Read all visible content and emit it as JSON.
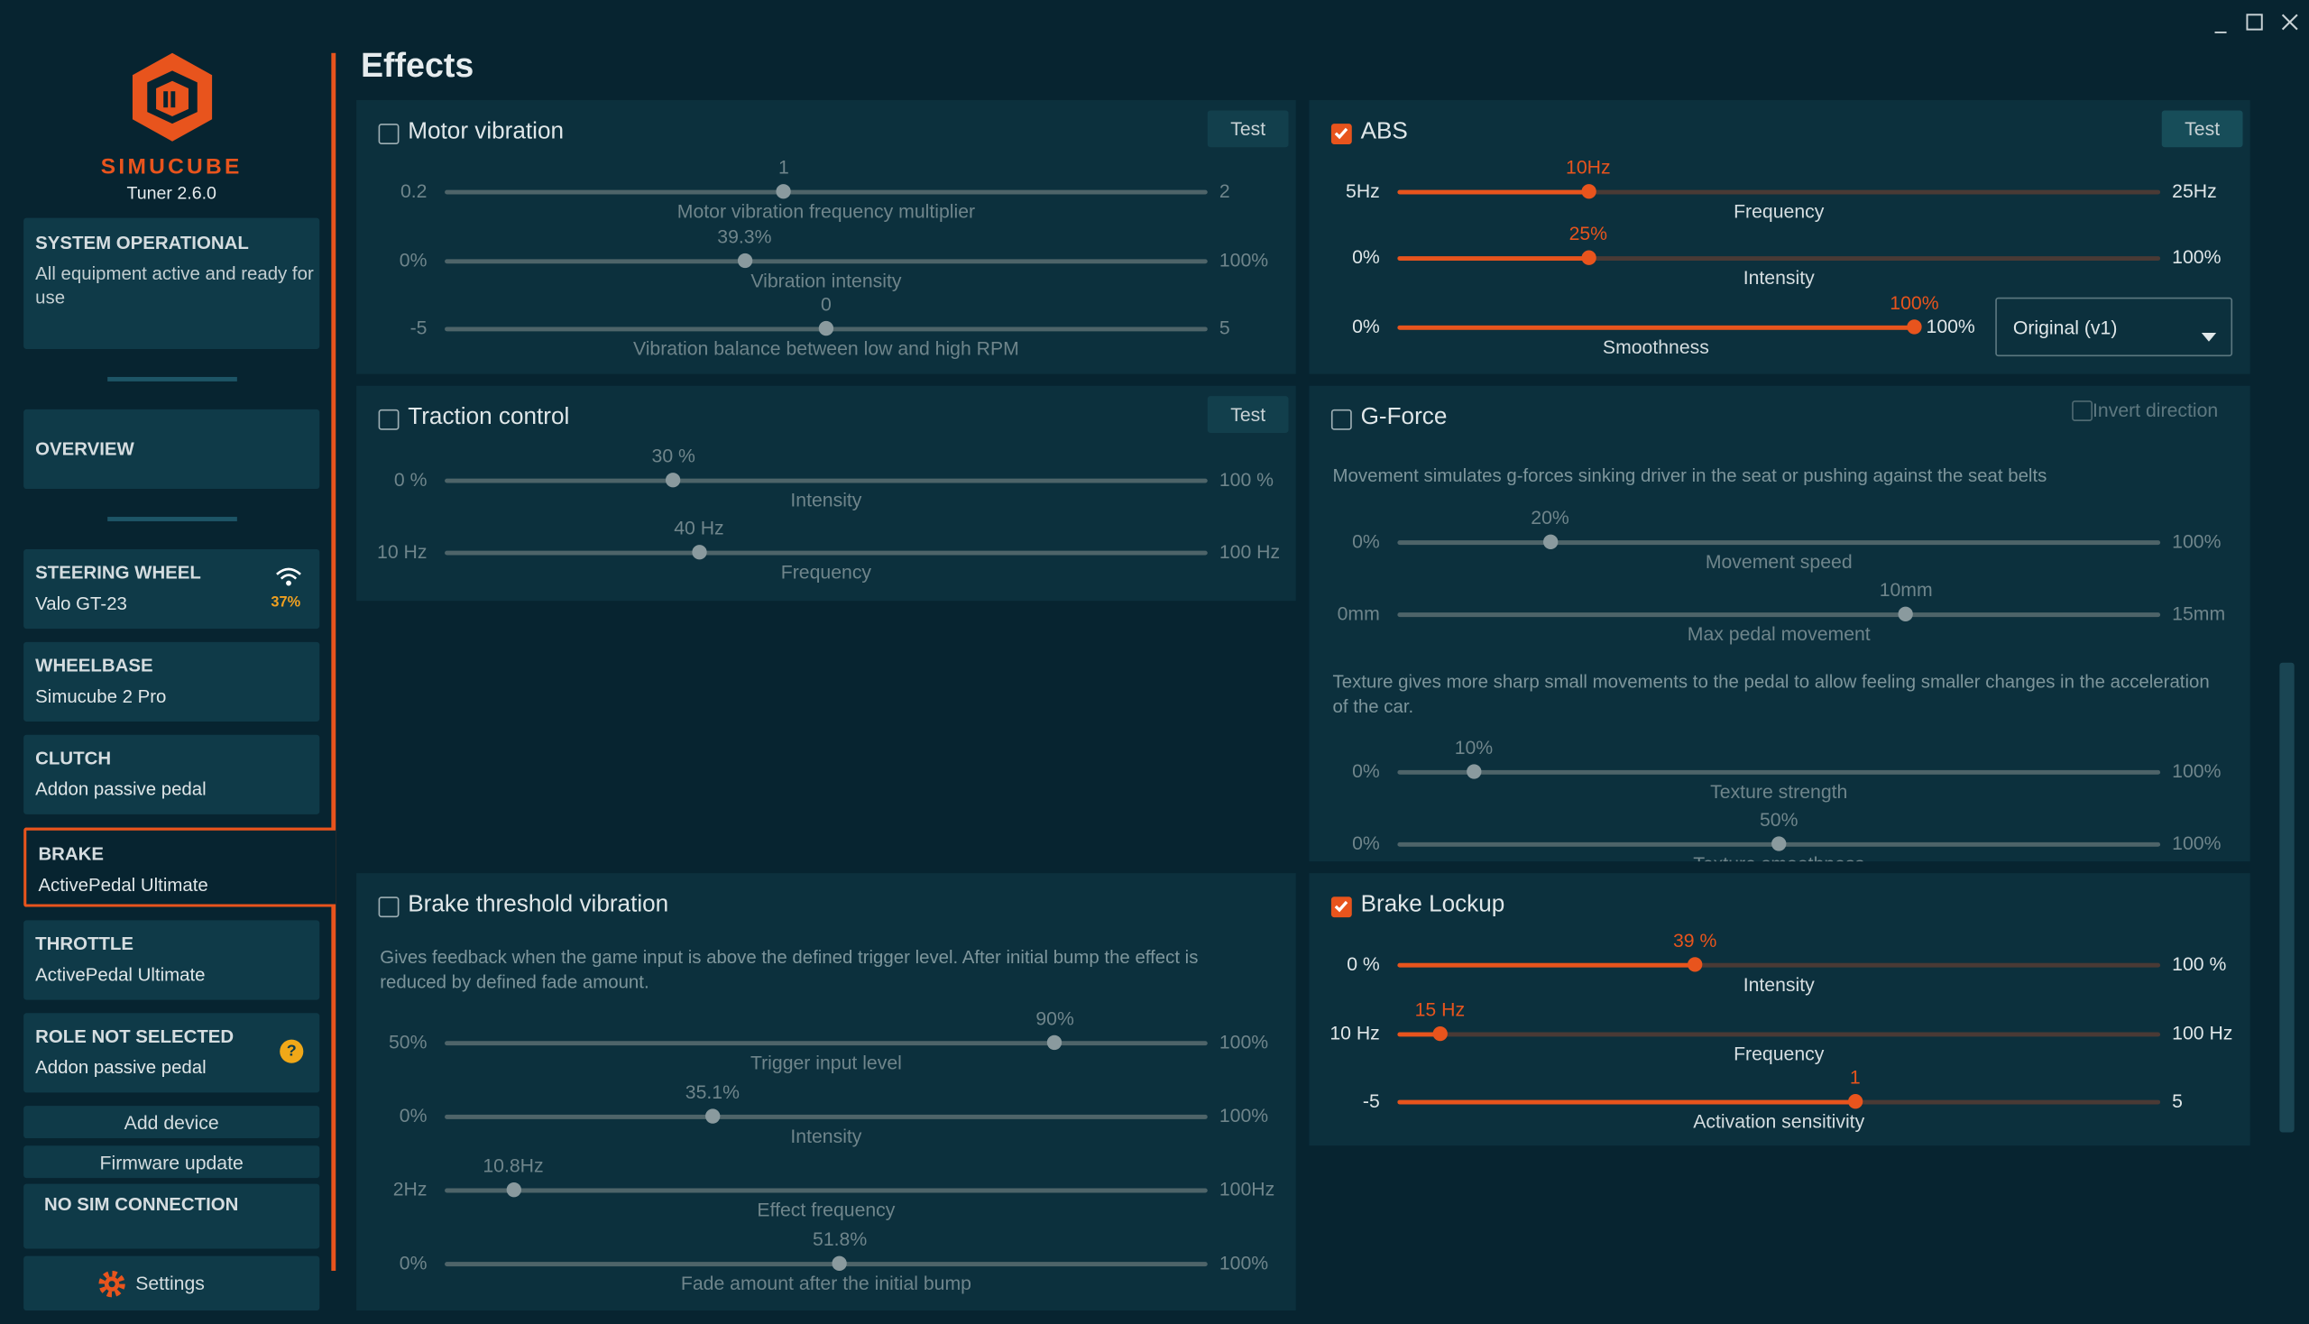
{
  "sidebar": {
    "brand": "SIMUCUBE",
    "version": "Tuner 2.6.0",
    "status": {
      "title": "SYSTEM OPERATIONAL",
      "text": "All equipment active and ready for use"
    },
    "overview": "OVERVIEW",
    "devices": [
      {
        "role": "STEERING WHEEL",
        "name": "Valo GT-23",
        "battery": "37%"
      },
      {
        "role": "WHEELBASE",
        "name": "Simucube 2 Pro"
      },
      {
        "role": "CLUTCH",
        "name": "Addon passive pedal"
      },
      {
        "role": "BRAKE",
        "name": "ActivePedal Ultimate",
        "selected": true
      },
      {
        "role": "THROTTLE",
        "name": "ActivePedal Ultimate"
      },
      {
        "role": "ROLE NOT SELECTED",
        "name": "Addon passive pedal",
        "badge": "?"
      }
    ],
    "actions": [
      "Add device",
      "Firmware update"
    ],
    "sim_status": "NO SIM CONNECTION",
    "settings": "Settings"
  },
  "page_title": "Effects",
  "panels": [
    {
      "title": "Motor vibration",
      "enabled": false,
      "test": "Test",
      "items": [
        {
          "name": "Motor vibration frequency multiplier",
          "min": 0.2,
          "max": 2,
          "value": 1
        },
        {
          "name": "Vibration intensity",
          "min": {
            "value": 0,
            "label": "0%"
          },
          "max": {
            "value": 100,
            "label": "100%"
          },
          "value": {
            "value": 39.3,
            "label": "39.3%"
          }
        },
        {
          "name": "Vibration balance between low and high RPM",
          "min": -5,
          "max": 5,
          "value": 0
        }
      ]
    },
    {
      "title": "ABS",
      "enabled": true,
      "test": "Test",
      "dropdown": "Original (v1)",
      "items": [
        {
          "name": "Frequency",
          "min": {
            "value": 5,
            "label": "5Hz"
          },
          "max": {
            "value": 25,
            "label": "25Hz"
          },
          "value": {
            "value": 10,
            "label": "10Hz"
          }
        },
        {
          "name": "Intensity",
          "min": {
            "value": 0,
            "label": "0%"
          },
          "max": {
            "value": 100,
            "label": "100%"
          },
          "value": {
            "value": 25,
            "label": "25%"
          }
        },
        {
          "name": "Smoothness",
          "min": {
            "value": 0,
            "label": "0%"
          },
          "max": {
            "value": 100,
            "label": "100%"
          },
          "value": {
            "value": 100,
            "label": "100%"
          }
        }
      ]
    },
    {
      "title": "Traction control",
      "enabled": false,
      "test": "Test",
      "items": [
        {
          "name": "Intensity",
          "min": {
            "value": 0,
            "label": "0 %"
          },
          "max": {
            "value": 100,
            "label": "100 %"
          },
          "value": {
            "value": 30,
            "label": "30 %"
          }
        },
        {
          "name": "Frequency",
          "min": {
            "value": 10,
            "label": "10 Hz"
          },
          "max": {
            "value": 100,
            "label": "100 Hz"
          },
          "value": {
            "value": 40,
            "label": "40 Hz"
          }
        }
      ]
    },
    {
      "title": "G-Force",
      "enabled": false,
      "option": {
        "label": "Invert direction",
        "checked": false
      },
      "items": [
        {
          "description": "Movement simulates g-forces sinking driver in the seat or pushing against the seat belts"
        },
        {
          "name": "Movement speed",
          "min": {
            "value": 0,
            "label": "0%"
          },
          "max": {
            "value": 100,
            "label": "100%"
          },
          "value": {
            "value": 20,
            "label": "20%"
          }
        },
        {
          "name": "Max pedal movement",
          "min": {
            "value": 0,
            "label": "0mm"
          },
          "max": {
            "value": 15,
            "label": "15mm"
          },
          "value": {
            "value": 10,
            "label": "10mm"
          }
        },
        {
          "description": "Texture gives more sharp small movements to the pedal to allow feeling smaller changes in the acceleration of the car."
        },
        {
          "name": "Texture strength",
          "min": {
            "value": 0,
            "label": "0%"
          },
          "max": {
            "value": 100,
            "label": "100%"
          },
          "value": {
            "value": 10,
            "label": "10%"
          }
        },
        {
          "name": "Texture smoothness",
          "min": {
            "value": 0,
            "label": "0%"
          },
          "max": {
            "value": 100,
            "label": "100%"
          },
          "value": {
            "value": 50,
            "label": "50%"
          }
        }
      ]
    },
    {
      "title": "Brake threshold vibration",
      "enabled": false,
      "items": [
        {
          "description": "Gives feedback when the game input is above the defined trigger level. After initial bump the effect is reduced by defined fade amount."
        },
        {
          "name": "Trigger input level",
          "min": {
            "value": 50,
            "label": "50%"
          },
          "max": {
            "value": 100,
            "label": "100%"
          },
          "value": {
            "value": 90,
            "label": "90%"
          }
        },
        {
          "name": "Intensity",
          "min": {
            "value": 0,
            "label": "0%"
          },
          "max": {
            "value": 100,
            "label": "100%"
          },
          "value": {
            "value": 35.1,
            "label": "35.1%"
          }
        },
        {
          "name": "Effect frequency",
          "min": {
            "value": 2,
            "label": "2Hz"
          },
          "max": {
            "value": 100,
            "label": "100Hz"
          },
          "value": {
            "value": 10.8,
            "label": "10.8Hz"
          }
        },
        {
          "name": "Fade amount after the initial bump",
          "min": {
            "value": 0,
            "label": "0%"
          },
          "max": {
            "value": 100,
            "label": "100%"
          },
          "value": {
            "value": 51.8,
            "label": "51.8%"
          }
        }
      ]
    },
    {
      "title": "Brake Lockup",
      "enabled": true,
      "items": [
        {
          "name": "Intensity",
          "min": {
            "value": 0,
            "label": "0 %"
          },
          "max": {
            "value": 100,
            "label": "100 %"
          },
          "value": {
            "value": 39,
            "label": "39 %"
          }
        },
        {
          "name": "Frequency",
          "min": {
            "value": 10,
            "label": "10 Hz"
          },
          "max": {
            "value": 100,
            "label": "100 Hz"
          },
          "value": {
            "value": 15,
            "label": "15 Hz"
          }
        },
        {
          "name": "Activation sensitivity",
          "min": -5,
          "max": 5,
          "value": 1
        }
      ]
    }
  ]
}
